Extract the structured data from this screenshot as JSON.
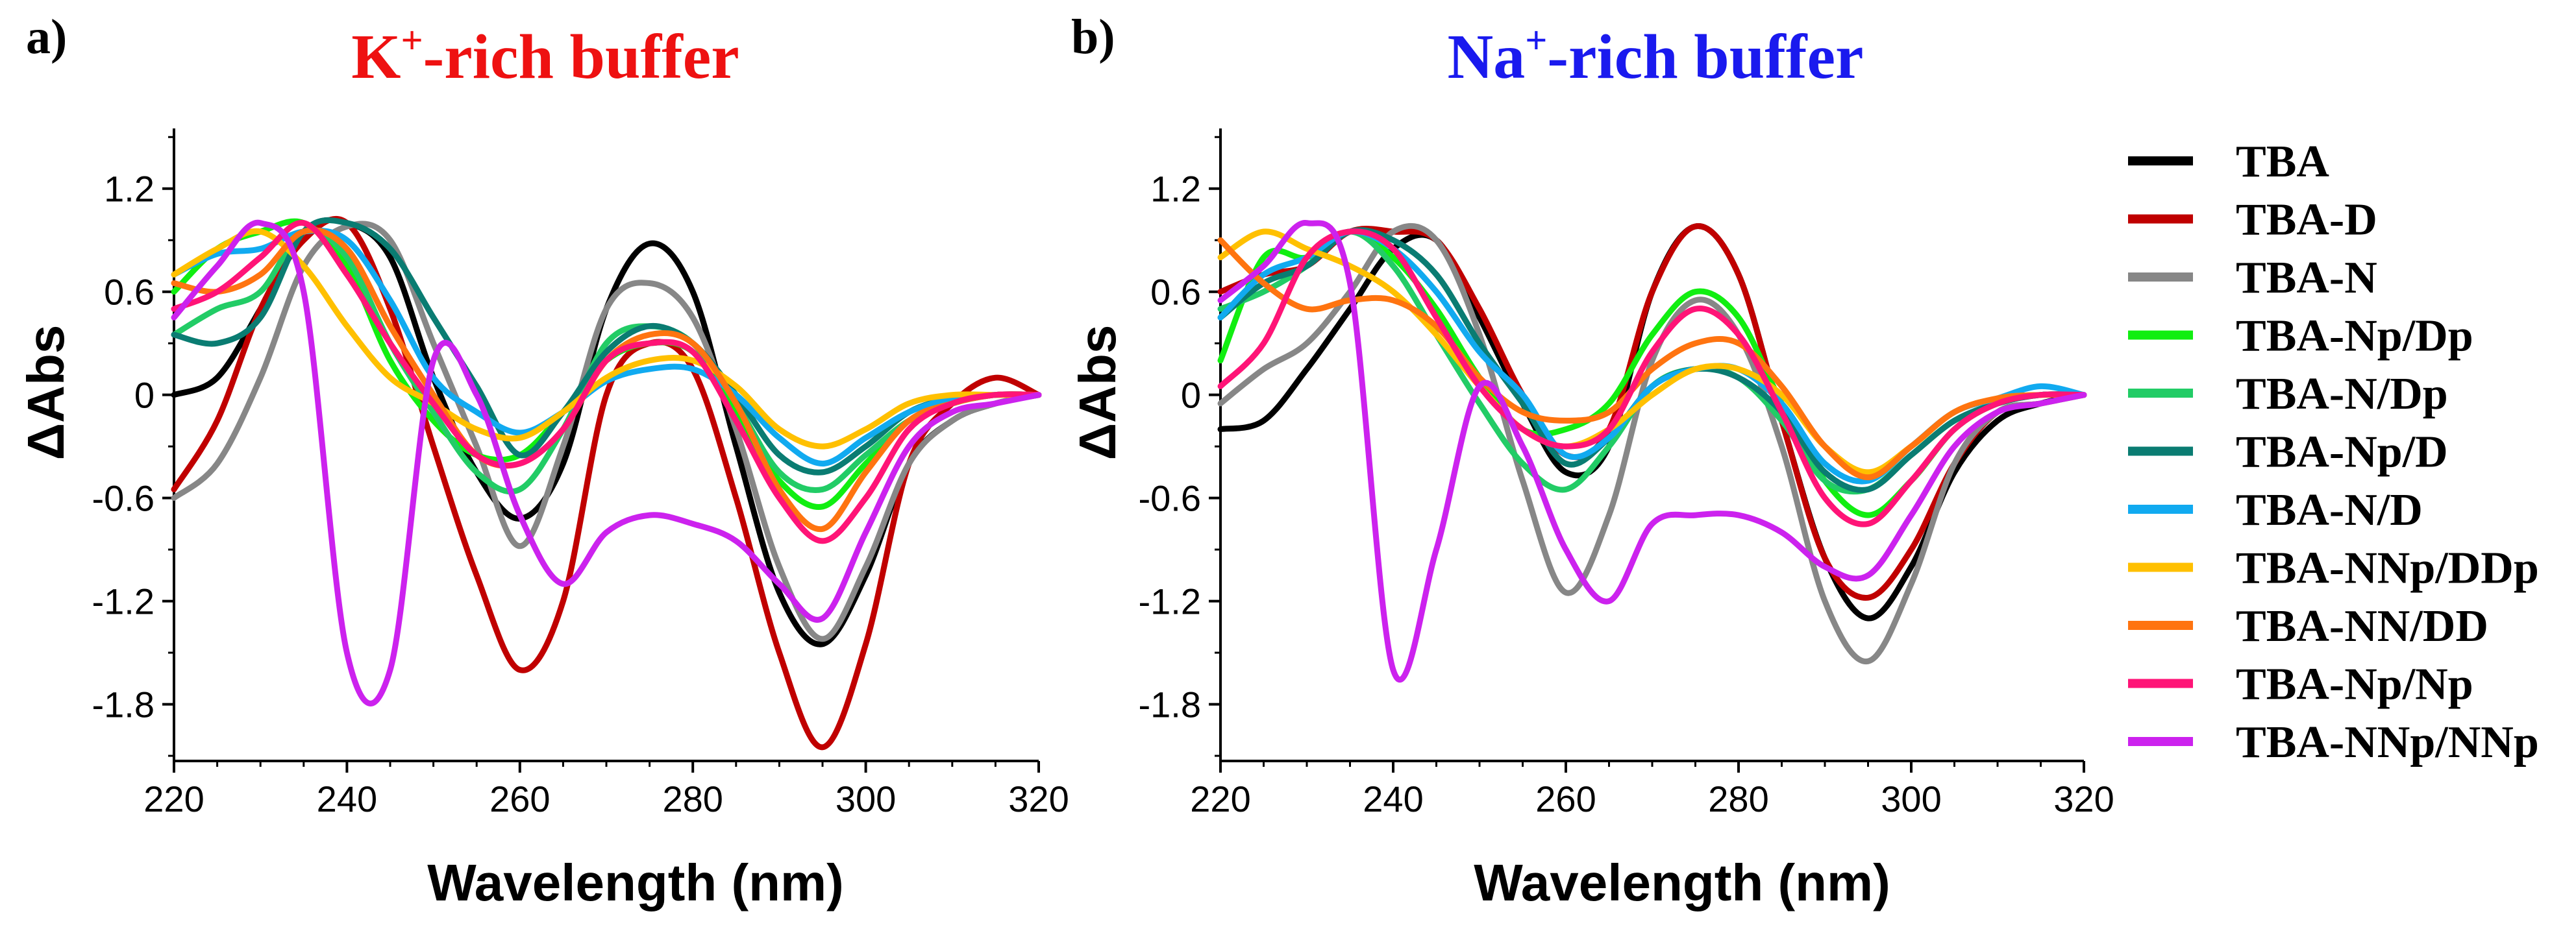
{
  "chart_data": [
    {
      "type": "line",
      "panel_label": "a)",
      "title": {
        "ion": "K",
        "sup": "+",
        "rest": "-rich buffer",
        "color": "#ee1111"
      },
      "xlabel": "Wavelength (nm)",
      "ylabel": "ΔAbs",
      "xlim": [
        220,
        320
      ],
      "ylim": [
        -2.13,
        1.55
      ],
      "xticks": [
        "220",
        "240",
        "260",
        "280",
        "300",
        "320"
      ],
      "yticks": [
        "1.2",
        "0.6",
        "0",
        "-0.6",
        "-1.2",
        "-1.8"
      ],
      "x": [
        220,
        225,
        230,
        235,
        240,
        245,
        250,
        255,
        260,
        265,
        270,
        275,
        280,
        285,
        290,
        295,
        300,
        305,
        310,
        315,
        320
      ],
      "series": [
        {
          "name": "TBA",
          "values": [
            0.0,
            0.1,
            0.5,
            0.95,
            1.0,
            0.8,
            0.1,
            -0.45,
            -0.72,
            -0.4,
            0.5,
            0.88,
            0.6,
            -0.3,
            -1.15,
            -1.45,
            -1.05,
            -0.4,
            -0.15,
            -0.05,
            0.0
          ]
        },
        {
          "name": "TBA-D",
          "values": [
            -0.55,
            -0.15,
            0.5,
            0.9,
            1.0,
            0.5,
            -0.3,
            -1.05,
            -1.6,
            -1.2,
            0.0,
            0.3,
            0.15,
            -0.6,
            -1.5,
            -2.05,
            -1.45,
            -0.4,
            -0.05,
            0.1,
            0.0
          ]
        },
        {
          "name": "TBA-N",
          "values": [
            -0.6,
            -0.4,
            0.1,
            0.75,
            0.98,
            0.9,
            0.3,
            -0.3,
            -0.88,
            -0.3,
            0.5,
            0.65,
            0.45,
            -0.2,
            -1.0,
            -1.42,
            -1.0,
            -0.4,
            -0.15,
            -0.05,
            0.0
          ]
        },
        {
          "name": "TBA-Np/Dp",
          "values": [
            0.6,
            0.85,
            0.95,
            1.0,
            0.75,
            0.2,
            -0.15,
            -0.35,
            -0.35,
            -0.1,
            0.2,
            0.3,
            0.25,
            -0.1,
            -0.5,
            -0.65,
            -0.4,
            -0.15,
            -0.05,
            0.0,
            0.0
          ]
        },
        {
          "name": "TBA-N/Dp",
          "values": [
            0.35,
            0.5,
            0.6,
            0.95,
            0.8,
            0.3,
            -0.1,
            -0.45,
            -0.55,
            -0.2,
            0.3,
            0.4,
            0.3,
            -0.05,
            -0.45,
            -0.55,
            -0.35,
            -0.15,
            -0.05,
            0.0,
            0.0
          ]
        },
        {
          "name": "TBA-Np/D",
          "values": [
            0.35,
            0.3,
            0.45,
            0.95,
            1.0,
            0.85,
            0.45,
            0.05,
            -0.35,
            -0.1,
            0.25,
            0.4,
            0.3,
            0.0,
            -0.35,
            -0.45,
            -0.3,
            -0.1,
            -0.02,
            0.0,
            0.0
          ]
        },
        {
          "name": "TBA-N/D",
          "values": [
            0.7,
            0.82,
            0.85,
            0.95,
            0.9,
            0.55,
            0.1,
            -0.1,
            -0.22,
            -0.1,
            0.08,
            0.15,
            0.15,
            0.0,
            -0.25,
            -0.4,
            -0.25,
            -0.1,
            -0.02,
            0.0,
            0.0
          ]
        },
        {
          "name": "TBA-NNp/DDp",
          "values": [
            0.7,
            0.85,
            0.95,
            0.75,
            0.4,
            0.1,
            -0.05,
            -0.2,
            -0.25,
            -0.1,
            0.1,
            0.2,
            0.2,
            0.05,
            -0.2,
            -0.3,
            -0.2,
            -0.05,
            0.0,
            0.0,
            0.0
          ]
        },
        {
          "name": "TBA-NN/DD",
          "values": [
            0.65,
            0.6,
            0.7,
            0.95,
            0.85,
            0.4,
            0.0,
            -0.35,
            -0.4,
            -0.2,
            0.2,
            0.35,
            0.3,
            -0.05,
            -0.55,
            -0.78,
            -0.45,
            -0.15,
            -0.05,
            0.0,
            0.0
          ]
        },
        {
          "name": "TBA-Np/Np",
          "values": [
            0.5,
            0.6,
            0.8,
            1.0,
            0.7,
            0.3,
            -0.05,
            -0.35,
            -0.4,
            -0.2,
            0.2,
            0.3,
            0.25,
            -0.15,
            -0.6,
            -0.85,
            -0.6,
            -0.2,
            -0.05,
            0.0,
            0.0
          ]
        },
        {
          "name": "TBA-NNp/NNp",
          "values": [
            0.45,
            0.75,
            1.0,
            0.6,
            -1.5,
            -1.6,
            0.2,
            0.0,
            -0.7,
            -1.1,
            -0.8,
            -0.7,
            -0.75,
            -0.85,
            -1.1,
            -1.3,
            -0.8,
            -0.3,
            -0.1,
            -0.05,
            0.0
          ]
        }
      ]
    },
    {
      "type": "line",
      "panel_label": "b)",
      "title": {
        "ion": "Na",
        "sup": "+",
        "rest": "-rich buffer",
        "color": "#1a1aee"
      },
      "xlabel": "Wavelength (nm)",
      "ylabel": "ΔAbs",
      "xlim": [
        220,
        320
      ],
      "ylim": [
        -2.13,
        1.55
      ],
      "xticks": [
        "220",
        "240",
        "260",
        "280",
        "300",
        "320"
      ],
      "yticks": [
        "1.2",
        "0.6",
        "0",
        "-0.6",
        "-1.2",
        "-1.8"
      ],
      "x": [
        220,
        225,
        230,
        235,
        240,
        245,
        250,
        255,
        260,
        265,
        270,
        275,
        280,
        285,
        290,
        295,
        300,
        305,
        310,
        315,
        320
      ],
      "series": [
        {
          "name": "TBA",
          "values": [
            -0.2,
            -0.15,
            0.15,
            0.5,
            0.85,
            0.9,
            0.45,
            -0.05,
            -0.45,
            -0.3,
            0.6,
            0.98,
            0.7,
            -0.15,
            -0.95,
            -1.3,
            -1.0,
            -0.45,
            -0.15,
            -0.05,
            0.0
          ]
        },
        {
          "name": "TBA-D",
          "values": [
            0.6,
            0.7,
            0.75,
            0.95,
            0.95,
            0.9,
            0.5,
            0.0,
            -0.35,
            -0.2,
            0.6,
            0.98,
            0.7,
            -0.15,
            -0.95,
            -1.18,
            -0.9,
            -0.4,
            -0.1,
            -0.05,
            0.0
          ]
        },
        {
          "name": "TBA-N",
          "values": [
            -0.05,
            0.15,
            0.3,
            0.6,
            0.95,
            0.9,
            0.35,
            -0.5,
            -1.15,
            -0.7,
            0.2,
            0.55,
            0.35,
            -0.3,
            -1.2,
            -1.55,
            -1.1,
            -0.4,
            -0.1,
            -0.05,
            0.0
          ]
        },
        {
          "name": "TBA-Np/Dp",
          "values": [
            0.2,
            0.8,
            0.8,
            0.95,
            0.8,
            0.5,
            0.1,
            -0.2,
            -0.2,
            -0.05,
            0.35,
            0.6,
            0.45,
            -0.05,
            -0.5,
            -0.7,
            -0.5,
            -0.2,
            -0.05,
            0.0,
            0.0
          ]
        },
        {
          "name": "TBA-N/Dp",
          "values": [
            0.5,
            0.6,
            0.75,
            0.95,
            0.75,
            0.35,
            -0.05,
            -0.4,
            -0.55,
            -0.3,
            0.05,
            0.15,
            0.1,
            -0.15,
            -0.5,
            -0.55,
            -0.35,
            -0.15,
            -0.05,
            0.0,
            0.0
          ]
        },
        {
          "name": "TBA-Np/D",
          "values": [
            0.45,
            0.65,
            0.75,
            0.95,
            0.9,
            0.7,
            0.3,
            -0.05,
            -0.4,
            -0.25,
            0.05,
            0.15,
            0.1,
            -0.1,
            -0.45,
            -0.55,
            -0.35,
            -0.15,
            -0.05,
            0.0,
            0.0
          ]
        },
        {
          "name": "TBA-N/D",
          "values": [
            0.45,
            0.7,
            0.8,
            0.95,
            0.85,
            0.6,
            0.25,
            0.0,
            -0.35,
            -0.25,
            0.05,
            0.15,
            0.15,
            -0.05,
            -0.4,
            -0.5,
            -0.3,
            -0.1,
            -0.02,
            0.05,
            0.0
          ]
        },
        {
          "name": "TBA-NNp/DDp",
          "values": [
            0.8,
            0.95,
            0.85,
            0.75,
            0.6,
            0.35,
            0.05,
            -0.2,
            -0.3,
            -0.2,
            0.0,
            0.15,
            0.15,
            0.0,
            -0.3,
            -0.45,
            -0.3,
            -0.1,
            -0.02,
            0.0,
            0.0
          ]
        },
        {
          "name": "TBA-NN/DD",
          "values": [
            0.9,
            0.65,
            0.5,
            0.55,
            0.55,
            0.4,
            0.1,
            -0.1,
            -0.15,
            -0.1,
            0.15,
            0.3,
            0.3,
            0.05,
            -0.3,
            -0.48,
            -0.3,
            -0.1,
            -0.02,
            0.0,
            0.0
          ]
        },
        {
          "name": "TBA-Np/Np",
          "values": [
            0.05,
            0.3,
            0.8,
            0.95,
            0.85,
            0.45,
            0.05,
            -0.2,
            -0.3,
            -0.2,
            0.25,
            0.5,
            0.35,
            -0.1,
            -0.6,
            -0.75,
            -0.5,
            -0.2,
            -0.05,
            0.0,
            0.0
          ]
        },
        {
          "name": "TBA-NNp/NNp",
          "values": [
            0.55,
            0.75,
            1.0,
            0.65,
            -1.6,
            -0.9,
            0.05,
            -0.3,
            -0.9,
            -1.2,
            -0.75,
            -0.7,
            -0.7,
            -0.8,
            -1.0,
            -1.05,
            -0.7,
            -0.3,
            -0.1,
            -0.05,
            0.0
          ]
        }
      ]
    }
  ],
  "legend": {
    "items": [
      {
        "label": "TBA",
        "color": "#000000"
      },
      {
        "label": "TBA-D",
        "color": "#c00000"
      },
      {
        "label": "TBA-N",
        "color": "#878787"
      },
      {
        "label": "TBA-Np/Dp",
        "color": "#11ee11"
      },
      {
        "label": "TBA-N/Dp",
        "color": "#22cc66"
      },
      {
        "label": "TBA-Np/D",
        "color": "#0a7c72"
      },
      {
        "label": "TBA-N/D",
        "color": "#11aaf0"
      },
      {
        "label": "TBA-NNp/DDp",
        "color": "#ffc000"
      },
      {
        "label": "TBA-NN/DD",
        "color": "#ff7410"
      },
      {
        "label": "TBA-Np/Np",
        "color": "#ff1477"
      },
      {
        "label": "TBA-NNp/NNp",
        "color": "#cc22ee"
      }
    ]
  }
}
